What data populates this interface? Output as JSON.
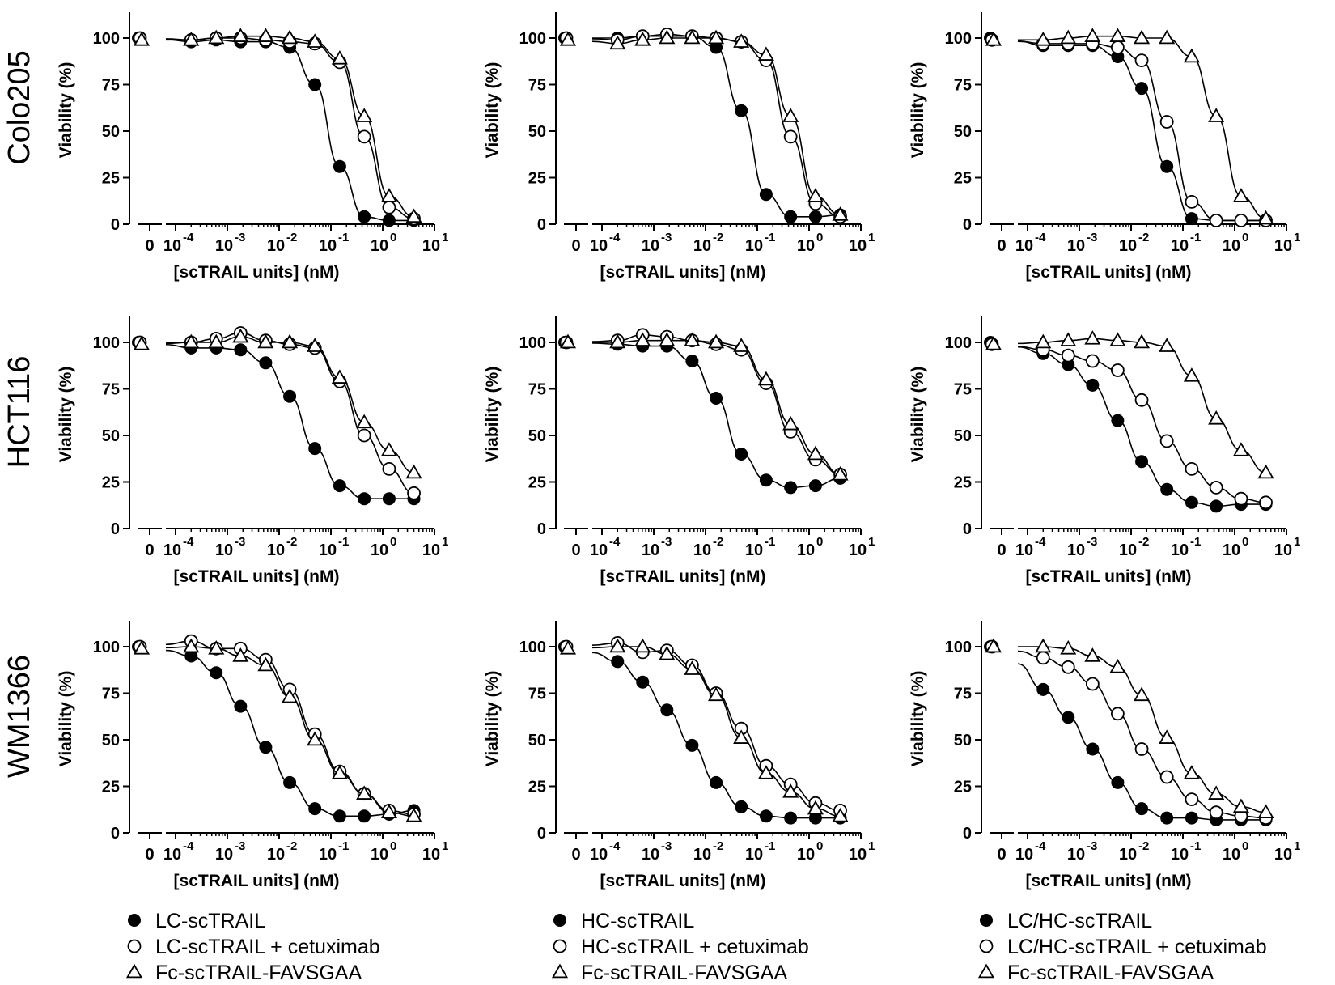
{
  "figure": {
    "ylabel": "Viability (%)",
    "xlabel": "[scTRAIL units] (nM)",
    "yticks": [
      "0",
      "25",
      "50",
      "75",
      "100"
    ],
    "xticks": [
      "0",
      "10",
      "10",
      "10",
      "10",
      "10",
      "10"
    ],
    "xtick_exponents": [
      "",
      "-4",
      "-3",
      "-2",
      "-1",
      "0",
      "1"
    ],
    "rows": [
      "Colo205",
      "HCT116",
      "WM1366"
    ],
    "legends": [
      [
        "LC-scTRAIL",
        "LC-scTRAIL + cetuximab",
        "Fc-scTRAIL-FAVSGAA"
      ],
      [
        "HC-scTRAIL",
        "HC-scTRAIL + cetuximab",
        "Fc-scTRAIL-FAVSGAA"
      ],
      [
        "LC/HC-scTRAIL",
        "LC/HC-scTRAIL + cetuximab",
        "Fc-scTRAIL-FAVSGAA"
      ]
    ]
  },
  "chart_data": [
    {
      "type": "scatter",
      "cell_line": "Colo205",
      "xscale": "log",
      "ylim": [
        0,
        110
      ],
      "x": [
        0.0002,
        0.00061,
        0.0018,
        0.0055,
        0.016,
        0.049,
        0.148,
        0.44,
        1.33,
        4.0
      ],
      "series": [
        {
          "name": "LC-scTRAIL",
          "marker": "filled-circle",
          "y0": 100,
          "values": [
            98,
            99,
            98,
            98,
            95,
            75,
            31,
            4,
            2,
            2
          ]
        },
        {
          "name": "LC-scTRAIL + cetuximab",
          "marker": "open-circle",
          "y0": 100,
          "values": [
            99,
            100,
            100,
            99,
            98,
            97,
            87,
            47,
            9,
            3
          ]
        },
        {
          "name": "Fc-scTRAIL-FAVSGAA",
          "marker": "open-triangle",
          "y0": 99,
          "values": [
            99,
            100,
            101,
            101,
            100,
            98,
            89,
            58,
            15,
            4
          ]
        }
      ]
    },
    {
      "type": "scatter",
      "cell_line": "Colo205",
      "xscale": "log",
      "ylim": [
        0,
        110
      ],
      "x": [
        0.0002,
        0.00061,
        0.0018,
        0.0055,
        0.016,
        0.049,
        0.148,
        0.44,
        1.33,
        4.0
      ],
      "series": [
        {
          "name": "HC-scTRAIL",
          "marker": "filled-circle",
          "y0": 100,
          "values": [
            100,
            101,
            101,
            101,
            95,
            61,
            16,
            4,
            4,
            5
          ]
        },
        {
          "name": "HC-scTRAIL + cetuximab",
          "marker": "open-circle",
          "y0": 100,
          "values": [
            99,
            101,
            102,
            101,
            100,
            98,
            88,
            47,
            11,
            4
          ]
        },
        {
          "name": "Fc-scTRAIL-FAVSGAA",
          "marker": "open-triangle",
          "y0": 99,
          "values": [
            97,
            99,
            100,
            100,
            100,
            98,
            91,
            58,
            15,
            5
          ]
        }
      ]
    },
    {
      "type": "scatter",
      "cell_line": "Colo205",
      "xscale": "log",
      "ylim": [
        0,
        110
      ],
      "x": [
        0.0002,
        0.00061,
        0.0018,
        0.0055,
        0.016,
        0.049,
        0.148,
        0.44,
        1.33,
        4.0
      ],
      "series": [
        {
          "name": "LC/HC-scTRAIL",
          "marker": "filled-circle",
          "y0": 100,
          "values": [
            96,
            96,
            96,
            90,
            73,
            31,
            3,
            2,
            2,
            2
          ]
        },
        {
          "name": "LC/HC-scTRAIL + cetuximab",
          "marker": "open-circle",
          "y0": 99,
          "values": [
            97,
            97,
            97,
            95,
            88,
            55,
            12,
            2,
            2,
            2
          ]
        },
        {
          "name": "Fc-scTRAIL-FAVSGAA",
          "marker": "open-triangle",
          "y0": 99,
          "values": [
            99,
            100,
            101,
            101,
            100,
            100,
            90,
            58,
            15,
            3
          ]
        }
      ]
    },
    {
      "type": "scatter",
      "cell_line": "HCT116",
      "xscale": "log",
      "ylim": [
        0,
        110
      ],
      "x": [
        0.0002,
        0.00061,
        0.0018,
        0.0055,
        0.016,
        0.049,
        0.148,
        0.44,
        1.33,
        4.0
      ],
      "series": [
        {
          "name": "LC-scTRAIL",
          "marker": "filled-circle",
          "y0": 100,
          "values": [
            97,
            97,
            96,
            89,
            71,
            43,
            23,
            16,
            16,
            16
          ]
        },
        {
          "name": "LC-scTRAIL + cetuximab",
          "marker": "open-circle",
          "y0": 100,
          "values": [
            100,
            102,
            105,
            101,
            99,
            97,
            79,
            50,
            32,
            19
          ]
        },
        {
          "name": "Fc-scTRAIL-FAVSGAA",
          "marker": "open-triangle",
          "y0": 99,
          "values": [
            100,
            100,
            103,
            100,
            100,
            98,
            81,
            57,
            42,
            30
          ]
        }
      ]
    },
    {
      "type": "scatter",
      "cell_line": "HCT116",
      "xscale": "log",
      "ylim": [
        0,
        110
      ],
      "x": [
        0.0002,
        0.00061,
        0.0018,
        0.0055,
        0.016,
        0.049,
        0.148,
        0.44,
        1.33,
        4.0
      ],
      "series": [
        {
          "name": "HC-scTRAIL",
          "marker": "filled-circle",
          "y0": 100,
          "values": [
            99,
            98,
            98,
            90,
            70,
            40,
            26,
            22,
            23,
            27
          ]
        },
        {
          "name": "HC-scTRAIL + cetuximab",
          "marker": "open-circle",
          "y0": 100,
          "values": [
            101,
            104,
            103,
            101,
            99,
            96,
            78,
            52,
            37,
            29
          ]
        },
        {
          "name": "Fc-scTRAIL-FAVSGAA",
          "marker": "open-triangle",
          "y0": 100,
          "values": [
            100,
            101,
            101,
            101,
            100,
            98,
            80,
            56,
            40,
            29
          ]
        }
      ]
    },
    {
      "type": "scatter",
      "cell_line": "HCT116",
      "xscale": "log",
      "ylim": [
        0,
        110
      ],
      "x": [
        0.0002,
        0.00061,
        0.0018,
        0.0055,
        0.016,
        0.049,
        0.148,
        0.44,
        1.33,
        4.0
      ],
      "series": [
        {
          "name": "LC/HC-scTRAIL",
          "marker": "filled-circle",
          "y0": 100,
          "values": [
            94,
            88,
            77,
            58,
            36,
            21,
            14,
            12,
            13,
            13
          ]
        },
        {
          "name": "LC/HC-scTRAIL + cetuximab",
          "marker": "open-circle",
          "y0": 99,
          "values": [
            96,
            93,
            90,
            85,
            69,
            47,
            32,
            22,
            16,
            14
          ]
        },
        {
          "name": "Fc-scTRAIL-FAVSGAA",
          "marker": "open-triangle",
          "y0": 99,
          "values": [
            100,
            101,
            102,
            101,
            100,
            98,
            82,
            59,
            42,
            30
          ]
        }
      ]
    },
    {
      "type": "scatter",
      "cell_line": "WM1366",
      "xscale": "log",
      "ylim": [
        0,
        110
      ],
      "x": [
        0.0002,
        0.00061,
        0.0018,
        0.0055,
        0.016,
        0.049,
        0.148,
        0.44,
        1.33,
        4.0
      ],
      "series": [
        {
          "name": "LC-scTRAIL",
          "marker": "filled-circle",
          "y0": 100,
          "values": [
            95,
            86,
            68,
            46,
            27,
            13,
            9,
            9,
            10,
            12
          ]
        },
        {
          "name": "LC-scTRAIL + cetuximab",
          "marker": "open-circle",
          "y0": 100,
          "values": [
            103,
            99,
            99,
            93,
            77,
            53,
            33,
            21,
            12,
            10
          ]
        },
        {
          "name": "Fc-scTRAIL-FAVSGAA",
          "marker": "open-triangle",
          "y0": 99,
          "values": [
            100,
            99,
            95,
            90,
            73,
            50,
            32,
            21,
            11,
            9
          ]
        }
      ]
    },
    {
      "type": "scatter",
      "cell_line": "WM1366",
      "xscale": "log",
      "ylim": [
        0,
        110
      ],
      "x": [
        0.0002,
        0.00061,
        0.0018,
        0.0055,
        0.016,
        0.049,
        0.148,
        0.44,
        1.33,
        4.0
      ],
      "series": [
        {
          "name": "HC-scTRAIL",
          "marker": "filled-circle",
          "y0": 100,
          "values": [
            92,
            81,
            66,
            47,
            27,
            14,
            9,
            8,
            8,
            8
          ]
        },
        {
          "name": "HC-scTRAIL + cetuximab",
          "marker": "open-circle",
          "y0": 100,
          "values": [
            102,
            97,
            98,
            90,
            75,
            56,
            36,
            26,
            16,
            12
          ]
        },
        {
          "name": "Fc-scTRAIL-FAVSGAA",
          "marker": "open-triangle",
          "y0": 99,
          "values": [
            100,
            100,
            96,
            88,
            74,
            51,
            32,
            22,
            13,
            9
          ]
        }
      ]
    },
    {
      "type": "scatter",
      "cell_line": "WM1366",
      "xscale": "log",
      "ylim": [
        0,
        110
      ],
      "x": [
        0.0002,
        0.00061,
        0.0018,
        0.0055,
        0.016,
        0.049,
        0.148,
        0.44,
        1.33,
        4.0
      ],
      "series": [
        {
          "name": "LC/HC-scTRAIL",
          "marker": "filled-circle",
          "y0": 100,
          "values": [
            77,
            62,
            45,
            27,
            13,
            8,
            8,
            7,
            7,
            7
          ]
        },
        {
          "name": "LC/HC-scTRAIL + cetuximab",
          "marker": "open-circle",
          "y0": 100,
          "values": [
            94,
            89,
            80,
            64,
            45,
            30,
            18,
            11,
            9,
            8
          ]
        },
        {
          "name": "Fc-scTRAIL-FAVSGAA",
          "marker": "open-triangle",
          "y0": 100,
          "values": [
            100,
            99,
            95,
            89,
            74,
            51,
            32,
            21,
            14,
            11
          ]
        }
      ]
    }
  ]
}
